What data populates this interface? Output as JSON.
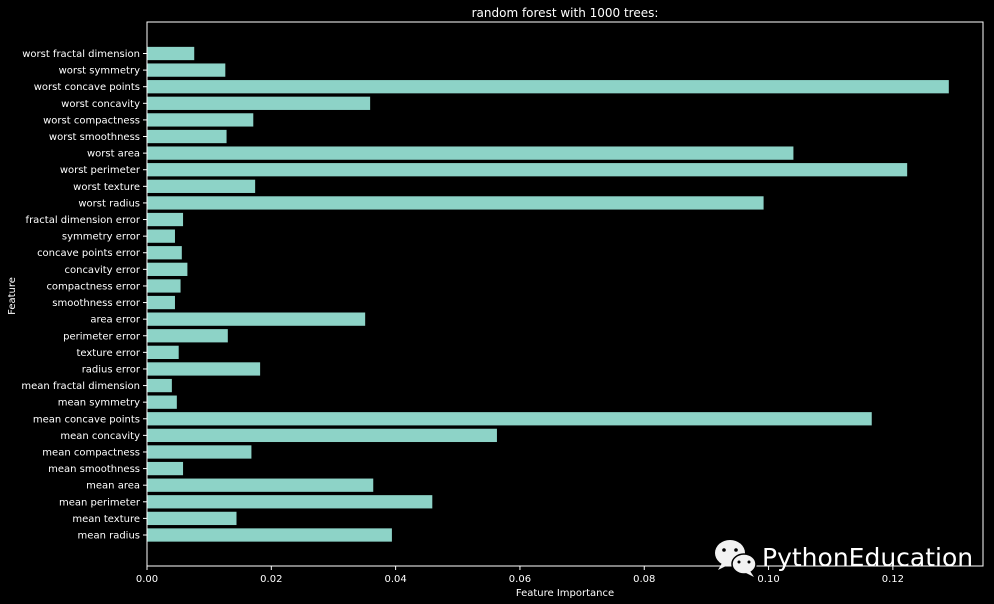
{
  "chart_data": {
    "type": "bar",
    "orientation": "horizontal",
    "title": "random forest with 1000 trees:",
    "xlabel": "Feature Importance",
    "ylabel": "Feature",
    "xlim": [
      0,
      0.1345
    ],
    "xticks": [
      0.0,
      0.02,
      0.04,
      0.06,
      0.08,
      0.1,
      0.12
    ],
    "xtick_labels": [
      "0.00",
      "0.02",
      "0.04",
      "0.06",
      "0.08",
      "0.10",
      "0.12"
    ],
    "grid": false,
    "legend": null,
    "categories": [
      "mean radius",
      "mean texture",
      "mean perimeter",
      "mean area",
      "mean smoothness",
      "mean compactness",
      "mean concavity",
      "mean concave points",
      "mean symmetry",
      "mean fractal dimension",
      "radius error",
      "texture error",
      "perimeter error",
      "area error",
      "smoothness error",
      "compactness error",
      "concavity error",
      "concave points error",
      "symmetry error",
      "fractal dimension error",
      "worst radius",
      "worst texture",
      "worst perimeter",
      "worst area",
      "worst smoothness",
      "worst compactness",
      "worst concavity",
      "worst concave points",
      "worst symmetry",
      "worst fractal dimension"
    ],
    "values": [
      0.0394,
      0.0144,
      0.0459,
      0.0364,
      0.0058,
      0.0168,
      0.0563,
      0.1166,
      0.0048,
      0.004,
      0.0182,
      0.0051,
      0.013,
      0.0351,
      0.0045,
      0.0054,
      0.0065,
      0.0056,
      0.0045,
      0.0058,
      0.0992,
      0.0174,
      0.1223,
      0.104,
      0.0128,
      0.0171,
      0.0359,
      0.129,
      0.0126,
      0.0076
    ]
  },
  "colors": {
    "background": "#000000",
    "bar": "#8dd3c7",
    "axes": "#ffffff",
    "text": "#ffffff"
  },
  "watermark": {
    "text": "PythonEducation",
    "icon": "wechat-icon"
  }
}
